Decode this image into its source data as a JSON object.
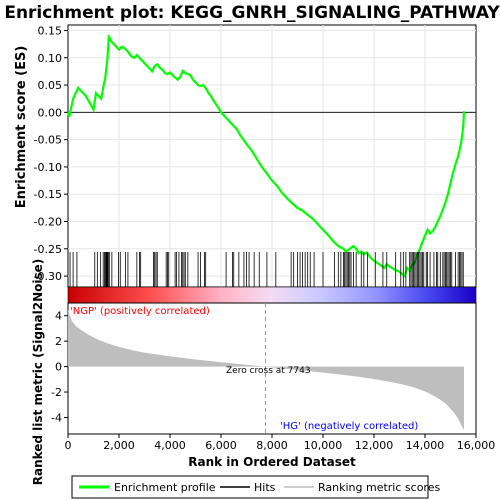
{
  "chart_data": [
    {
      "type": "line",
      "title": "Enrichment plot: KEGG_GNRH_SIGNALING_PATHWAY",
      "ylabel": "Enrichment score (ES)",
      "xlim": [
        0,
        16000
      ],
      "ylim": [
        -0.32,
        0.16
      ],
      "yticks": [
        "0.15",
        "0.10",
        "0.05",
        "0.00",
        "-0.05",
        "-0.10",
        "-0.15",
        "-0.20",
        "-0.25",
        "-0.30"
      ],
      "ytick_values": [
        0.15,
        0.1,
        0.05,
        0.0,
        -0.05,
        -0.1,
        -0.15,
        -0.2,
        -0.25,
        -0.3
      ],
      "grid": true,
      "series": [
        {
          "name": "Enrichment profile",
          "color": "#00ff00",
          "x": [
            0,
            50,
            200,
            400,
            700,
            1000,
            1100,
            1200,
            1300,
            1400,
            1450,
            1500,
            1550,
            1600,
            1650,
            1700,
            1800,
            1900,
            2000,
            2100,
            2200,
            2300,
            2400,
            2500,
            2600,
            2700,
            2800,
            2900,
            3000,
            3100,
            3200,
            3300,
            3400,
            3500,
            3600,
            3700,
            3800,
            3900,
            4000,
            4100,
            4200,
            4300,
            4400,
            4500,
            4600,
            4700,
            4800,
            4900,
            5000,
            5100,
            5200,
            5300,
            5400,
            5500,
            5600,
            5700,
            5800,
            5900,
            6000,
            6200,
            6400,
            6600,
            6800,
            7000,
            7200,
            7400,
            7600,
            7800,
            8000,
            8200,
            8400,
            8600,
            8800,
            9000,
            9200,
            9400,
            9600,
            9800,
            10000,
            10200,
            10400,
            10600,
            10800,
            10900,
            11000,
            11100,
            11200,
            11300,
            11400,
            11500,
            11600,
            11700,
            11800,
            11900,
            12000,
            12200,
            12400,
            12500,
            12600,
            12800,
            13000,
            13100,
            13200,
            13300,
            13400,
            13500,
            13600,
            13700,
            13800,
            13900,
            14000,
            14100,
            14200,
            14300,
            14400,
            14500,
            14600,
            14700,
            14800,
            14900,
            15000,
            15100,
            15200,
            15300,
            15400,
            15450,
            15500,
            15530
          ],
          "values": [
            0.0,
            -0.008,
            0.025,
            0.045,
            0.03,
            0.005,
            0.035,
            0.03,
            0.025,
            0.05,
            0.06,
            0.08,
            0.1,
            0.138,
            0.135,
            0.13,
            0.125,
            0.12,
            0.115,
            0.12,
            0.118,
            0.114,
            0.108,
            0.102,
            0.1,
            0.105,
            0.1,
            0.095,
            0.09,
            0.085,
            0.08,
            0.075,
            0.085,
            0.088,
            0.082,
            0.078,
            0.072,
            0.07,
            0.073,
            0.068,
            0.064,
            0.06,
            0.065,
            0.076,
            0.072,
            0.07,
            0.068,
            0.06,
            0.055,
            0.05,
            0.048,
            0.05,
            0.044,
            0.036,
            0.03,
            0.022,
            0.015,
            0.008,
            0.0,
            -0.01,
            -0.02,
            -0.03,
            -0.045,
            -0.058,
            -0.07,
            -0.085,
            -0.1,
            -0.112,
            -0.125,
            -0.135,
            -0.148,
            -0.158,
            -0.167,
            -0.175,
            -0.18,
            -0.188,
            -0.195,
            -0.205,
            -0.215,
            -0.225,
            -0.236,
            -0.245,
            -0.25,
            -0.255,
            -0.252,
            -0.248,
            -0.245,
            -0.25,
            -0.258,
            -0.255,
            -0.26,
            -0.257,
            -0.262,
            -0.268,
            -0.272,
            -0.278,
            -0.285,
            -0.278,
            -0.282,
            -0.288,
            -0.292,
            -0.296,
            -0.3,
            -0.285,
            -0.29,
            -0.28,
            -0.275,
            -0.262,
            -0.25,
            -0.238,
            -0.226,
            -0.215,
            -0.222,
            -0.218,
            -0.21,
            -0.2,
            -0.19,
            -0.178,
            -0.165,
            -0.15,
            -0.13,
            -0.11,
            -0.095,
            -0.08,
            -0.06,
            -0.045,
            -0.025,
            0.002
          ]
        }
      ],
      "hits_label": "Hits",
      "hits": [
        80,
        200,
        350,
        1050,
        1150,
        1280,
        1380,
        1430,
        1470,
        1500,
        1520,
        1540,
        1560,
        1580,
        1620,
        1720,
        1980,
        2050,
        2250,
        2350,
        2700,
        2800,
        2850,
        3350,
        3400,
        3450,
        3500,
        3850,
        3900,
        3950,
        4200,
        4250,
        4350,
        4450,
        4500,
        4550,
        4600,
        4700,
        5100,
        5200,
        5350,
        5400,
        6200,
        6450,
        6500,
        6700,
        6900,
        7000,
        7100,
        7300,
        7500,
        7800,
        8150,
        8750,
        8850,
        9000,
        9100,
        9200,
        9300,
        9400,
        9500,
        9650,
        10000,
        10450,
        10600,
        10700,
        10800,
        10850,
        10900,
        10950,
        11000,
        11050,
        11100,
        11200,
        11300,
        11500,
        11600,
        11750,
        12050,
        12350,
        12500,
        12850,
        13050,
        13150,
        13250,
        13400,
        13450,
        13500,
        13550,
        13600,
        13650,
        13700,
        13750,
        13800,
        13850,
        13900,
        13950,
        14050,
        14100,
        14200,
        14350,
        14450,
        14500,
        14600,
        14700,
        14750,
        14800,
        14850,
        14900,
        14950,
        15000,
        15050,
        15200,
        15300,
        15350,
        15400,
        15450,
        15500
      ]
    },
    {
      "type": "area",
      "ylabel": "Ranked list metric (Signal2Noise)",
      "xlabel": "Rank in Ordered Dataset",
      "xlim": [
        0,
        16000
      ],
      "ylim": [
        -5.3,
        5.0
      ],
      "xticks": [
        "0",
        "2,000",
        "4,000",
        "6,000",
        "8,000",
        "10,000",
        "12,000",
        "14,000",
        "16,000"
      ],
      "xtick_values": [
        0,
        2000,
        4000,
        6000,
        8000,
        10000,
        12000,
        14000,
        16000
      ],
      "yticks": [
        "4",
        "2",
        "0",
        "-2",
        "-4"
      ],
      "ytick_values": [
        4,
        2,
        0,
        -2,
        -4
      ],
      "series": [
        {
          "name": "Ranking metric scores",
          "color": "#bebebe",
          "x": [
            0,
            50,
            150,
            300,
            500,
            800,
            1200,
            1600,
            2000,
            2500,
            3000,
            3500,
            4000,
            4500,
            5000,
            5500,
            6000,
            6500,
            7000,
            7500,
            7743,
            8000,
            8500,
            9000,
            9500,
            10000,
            10500,
            11000,
            11500,
            12000,
            12500,
            13000,
            13500,
            14000,
            14300,
            14600,
            14800,
            15000,
            15150,
            15300,
            15400,
            15500,
            15530
          ],
          "values": [
            4.5,
            4.1,
            3.6,
            3.2,
            2.9,
            2.5,
            2.1,
            1.8,
            1.55,
            1.3,
            1.1,
            0.95,
            0.8,
            0.68,
            0.56,
            0.45,
            0.34,
            0.24,
            0.14,
            0.05,
            0.0,
            -0.06,
            -0.16,
            -0.26,
            -0.36,
            -0.47,
            -0.58,
            -0.7,
            -0.83,
            -0.98,
            -1.15,
            -1.35,
            -1.6,
            -1.95,
            -2.25,
            -2.6,
            -2.9,
            -3.3,
            -3.65,
            -4.1,
            -4.5,
            -4.9,
            -5.0
          ]
        }
      ],
      "annotations": [
        {
          "text": "'NGP' (positively correlated)",
          "color": "#ff0000"
        },
        {
          "text": "Zero cross at 7743",
          "color": "#000000",
          "x": 7743
        },
        {
          "text": "'HG' (negatively correlated)",
          "color": "#0000ff"
        }
      ]
    }
  ],
  "legend": {
    "placement": "bottom",
    "items": [
      {
        "label": "Enrichment profile",
        "color": "#00ff00"
      },
      {
        "label": "Hits",
        "color": "#000000"
      },
      {
        "label": "Ranking metric scores",
        "color": "#bebebe"
      }
    ]
  }
}
